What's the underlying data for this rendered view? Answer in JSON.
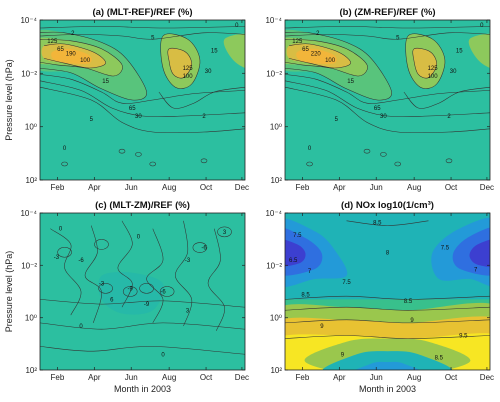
{
  "chart_data": [
    {
      "type": "contour",
      "title": "(a) (MLT-REF)/REF (%)",
      "xlabel": "",
      "ylabel": "Pressure level (hPa)",
      "xticks": [
        "Feb",
        "Apr",
        "Jun",
        "Aug",
        "Oct",
        "Dec"
      ],
      "yticks": [
        "10⁻⁴",
        "10⁻²",
        "10⁰",
        "10²"
      ],
      "ylim": [
        100,
        0.0001
      ],
      "yscale": "log",
      "colors": {
        "low": "#2cbfa0",
        "mid": "#8dc95c",
        "high": "#f2b53a"
      },
      "contour_labels": [
        "0",
        "2",
        "5",
        "15",
        "30",
        "65",
        "100",
        "125",
        "190"
      ]
    },
    {
      "type": "contour",
      "title": "(b) (ZM-REF)/REF (%)",
      "xlabel": "",
      "ylabel": "",
      "xticks": [
        "Feb",
        "Apr",
        "Jun",
        "Aug",
        "Oct",
        "Dec"
      ],
      "yticks": [
        "10⁻⁴",
        "10⁻²",
        "10⁰",
        "10²"
      ],
      "ylim": [
        100,
        0.0001
      ],
      "yscale": "log",
      "colors": {
        "low": "#2cbfa0",
        "mid": "#8dc95c",
        "high": "#f2b53a"
      },
      "contour_labels": [
        "0",
        "2",
        "5",
        "15",
        "30",
        "65",
        "100",
        "125",
        "220"
      ]
    },
    {
      "type": "contour",
      "title": "(c) (MLT-ZM)/REF (%)",
      "xlabel": "Month in 2003",
      "ylabel": "Pressure level (hPa)",
      "xticks": [
        "Feb",
        "Apr",
        "Jun",
        "Aug",
        "Oct",
        "Dec"
      ],
      "yticks": [
        "10⁻⁴",
        "10⁻²",
        "10⁰",
        "10²"
      ],
      "ylim": [
        100,
        0.0001
      ],
      "yscale": "log",
      "colors": {
        "low": "#26b9a8",
        "mid": "#2cbfa0"
      },
      "contour_labels": [
        "0",
        "-3",
        "-6",
        "-9",
        "3",
        "6"
      ]
    },
    {
      "type": "contour",
      "title": "(d) NOx log10(1/cm³)",
      "xlabel": "Month in 2003",
      "ylabel": "",
      "xticks": [
        "Feb",
        "Apr",
        "Jun",
        "Aug",
        "Oct",
        "Dec"
      ],
      "yticks": [
        "10⁻⁴",
        "10⁻²",
        "10⁰",
        "10²"
      ],
      "ylim": [
        100,
        0.0001
      ],
      "yscale": "log",
      "colors": {
        "c1": "#3c3fd0",
        "c2": "#2f6fe0",
        "c3": "#239ad8",
        "c4": "#1fb3b6",
        "c5": "#38c08c",
        "c6": "#9ac74d",
        "c7": "#e8c232",
        "c8": "#f7e623"
      },
      "contour_labels": [
        "6.5",
        "7",
        "7.5",
        "8",
        "8.5",
        "9",
        "9.5"
      ]
    }
  ]
}
